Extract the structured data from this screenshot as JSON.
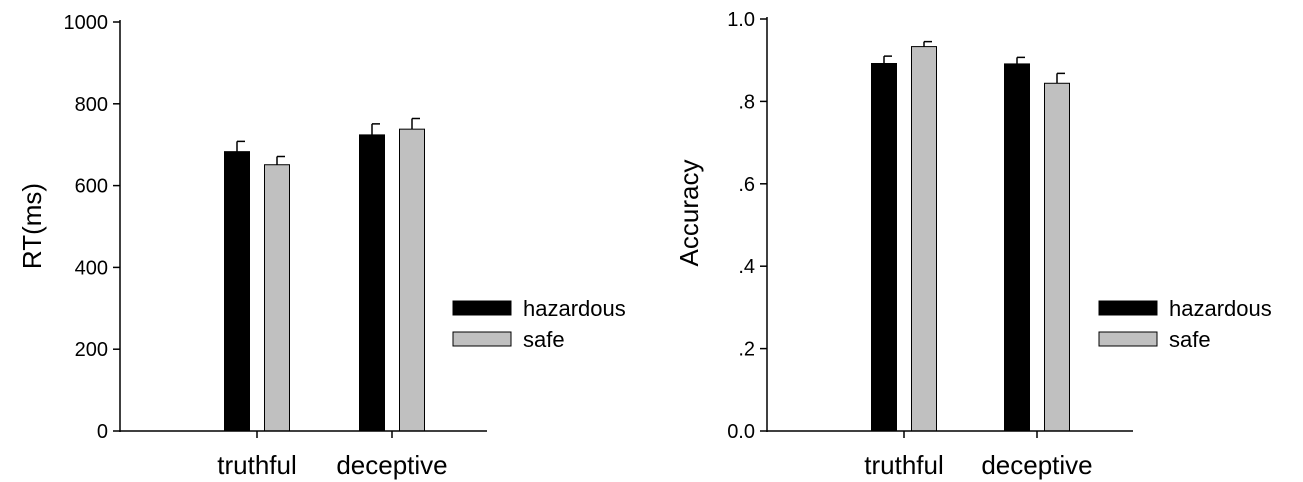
{
  "chart_data": [
    {
      "type": "bar",
      "title": "",
      "xlabel": "",
      "ylabel": "RT(ms)",
      "ylim": [
        0,
        1000
      ],
      "yticks": [
        0,
        200,
        400,
        600,
        800,
        1000
      ],
      "ytick_labels": [
        "0",
        "200",
        "400",
        "600",
        "800",
        "1000"
      ],
      "categories": [
        "truthful",
        "deceptive"
      ],
      "series": [
        {
          "name": "hazardous",
          "color": "#000000",
          "values": [
            683,
            724
          ],
          "errors": [
            25,
            27
          ]
        },
        {
          "name": "safe",
          "color": "#c0c0c0",
          "values": [
            651,
            738
          ],
          "errors": [
            20,
            26
          ]
        }
      ],
      "legend_position": "right"
    },
    {
      "type": "bar",
      "title": "",
      "xlabel": "",
      "ylabel": "Accuracy",
      "ylim": [
        0,
        1.0
      ],
      "yticks": [
        0,
        0.2,
        0.4,
        0.6,
        0.8,
        1.0
      ],
      "ytick_labels": [
        "0.0",
        ".2",
        ".4",
        ".6",
        ".8",
        "1.0"
      ],
      "categories": [
        "truthful",
        "deceptive"
      ],
      "series": [
        {
          "name": "hazardous",
          "color": "#000000",
          "values": [
            0.892,
            0.891
          ],
          "errors": [
            0.018,
            0.016
          ]
        },
        {
          "name": "safe",
          "color": "#c0c0c0",
          "values": [
            0.933,
            0.844
          ],
          "errors": [
            0.012,
            0.024
          ]
        }
      ],
      "legend_position": "right"
    }
  ]
}
